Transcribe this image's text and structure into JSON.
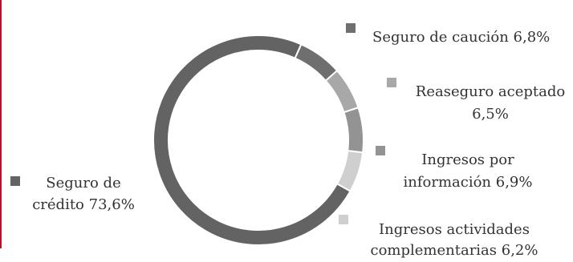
{
  "chart_data": {
    "type": "pie",
    "variant": "donut",
    "title": "",
    "categories": [
      "Seguro de crédito",
      "Seguro de caución",
      "Reaseguro aceptado",
      "Ingresos por información",
      "Ingresos actividades complementarias"
    ],
    "values": [
      73.6,
      6.8,
      6.5,
      6.9,
      6.2
    ],
    "colors": [
      "#636363",
      "#6f6f6f",
      "#a8a8a8",
      "#939393",
      "#cfcfcf"
    ],
    "labels": [
      {
        "lines": [
          "Seguro de",
          "crédito 73,6%"
        ]
      },
      {
        "lines": [
          "Seguro de caución  6,8%"
        ]
      },
      {
        "lines": [
          "Reaseguro aceptado",
          "6,5%"
        ]
      },
      {
        "lines": [
          "Ingresos por",
          "información 6,9%"
        ]
      },
      {
        "lines": [
          "Ingresos actividades",
          "complementarias  6,2%"
        ]
      }
    ],
    "legend": "labels-around",
    "start_angle_deg": 24
  },
  "colors": {
    "accent_edge": "#b0152d"
  }
}
